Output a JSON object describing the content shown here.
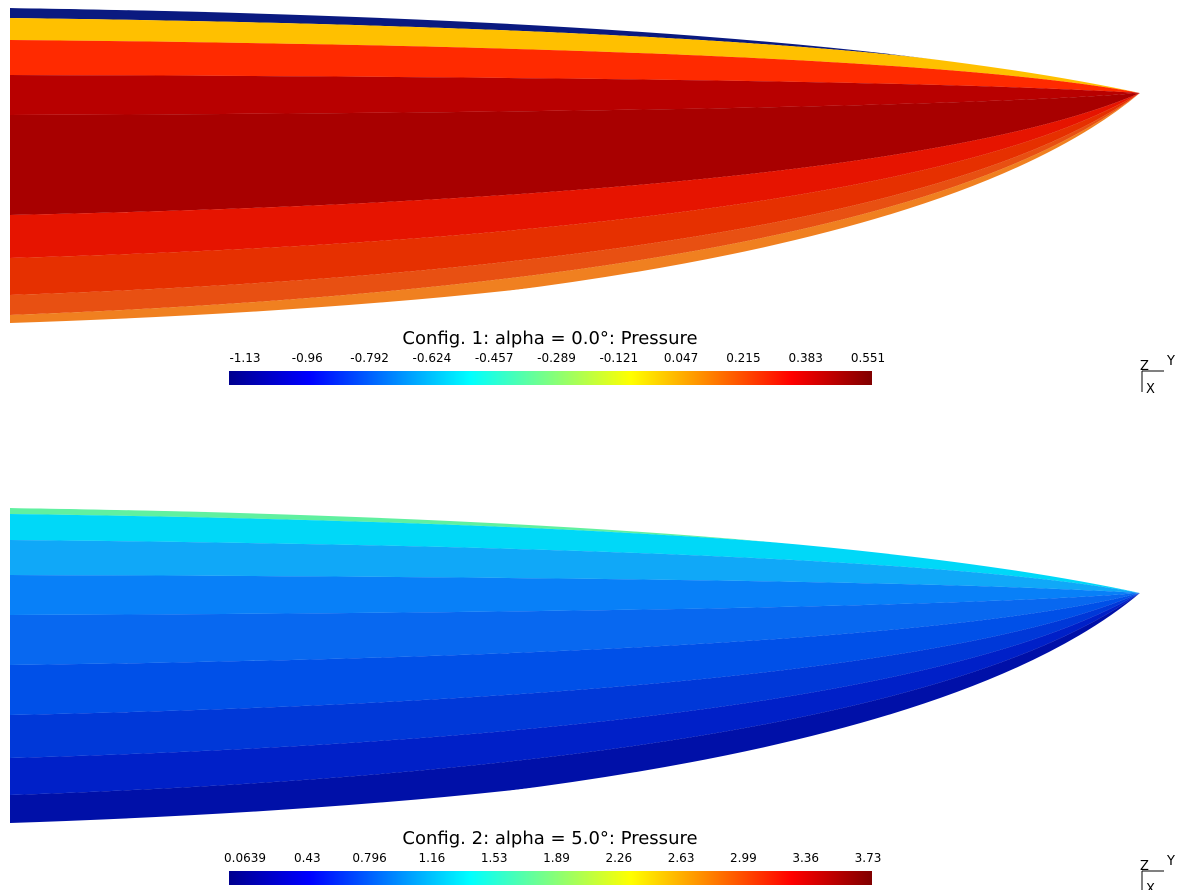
{
  "panels": [
    {
      "title": "Config. 1: alpha =  0.0°: Pressure",
      "colorbar_ticks": [
        "-1.13",
        "-0.96",
        "-0.792",
        "-0.624",
        "-0.457",
        "-0.289",
        "-0.121",
        "0.047",
        "0.215",
        "0.383",
        "0.551"
      ]
    },
    {
      "title": "Config. 2: alpha =  5.0°: Pressure",
      "colorbar_ticks": [
        "0.0639",
        "0.43",
        "0.796",
        "1.16",
        "1.53",
        "1.89",
        "2.26",
        "2.63",
        "2.99",
        "3.36",
        "3.73"
      ]
    }
  ],
  "axis_labels": {
    "z": "Z",
    "y": "Y",
    "x": "X"
  }
}
